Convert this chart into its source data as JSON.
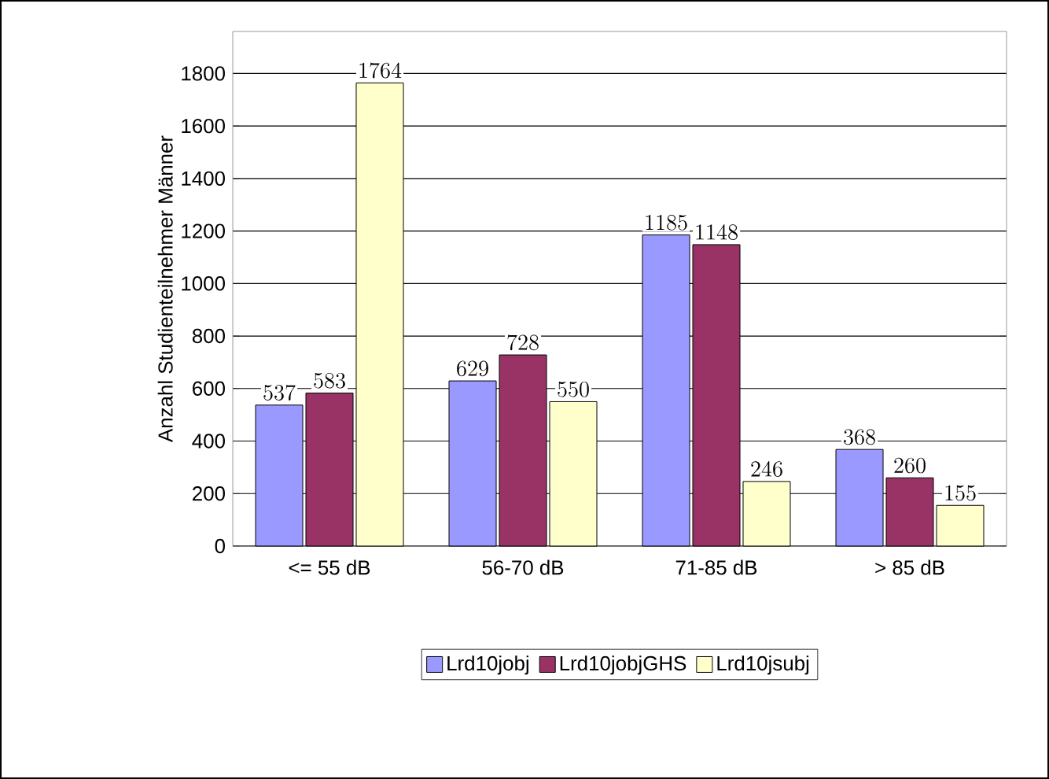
{
  "chart_data": {
    "type": "bar",
    "ylabel": "Anzahl Studienteilnehmer Männer",
    "categories": [
      "<= 55 dB",
      "56-70 dB",
      "71-85 dB",
      "> 85 dB"
    ],
    "series": [
      {
        "name": "Lrd10jobj",
        "color": "#9999ff",
        "values": [
          537,
          629,
          1185,
          368
        ]
      },
      {
        "name": "Lrd10jobjGHS",
        "color": "#993366",
        "values": [
          583,
          728,
          1148,
          260
        ]
      },
      {
        "name": "Lrd10jsubj",
        "color": "#ffffcc",
        "values": [
          1764,
          550,
          246,
          155
        ]
      }
    ],
    "ylim": [
      0,
      1960
    ],
    "yticks": [
      0,
      200,
      400,
      600,
      800,
      1000,
      1200,
      1400,
      1600,
      1800
    ],
    "grid": "y",
    "legend": "bottom",
    "data_labels": true
  }
}
